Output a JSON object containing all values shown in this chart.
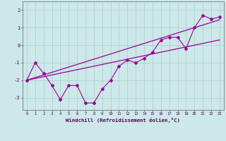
{
  "title": "",
  "xlabel": "Windchill (Refroidissement éolien,°C)",
  "bg_color": "#cce8e8",
  "line_color": "#990099",
  "xlim": [
    -0.5,
    23.5
  ],
  "ylim": [
    -3.7,
    2.5
  ],
  "x_data": [
    0,
    1,
    2,
    3,
    4,
    5,
    6,
    7,
    8,
    9,
    10,
    11,
    12,
    13,
    14,
    15,
    16,
    17,
    18,
    19,
    20,
    21,
    22,
    23
  ],
  "y_zigzag": [
    -2.0,
    -1.0,
    -1.6,
    -2.3,
    -3.1,
    -2.3,
    -2.3,
    -3.3,
    -3.3,
    -2.5,
    -2.0,
    -1.2,
    -0.85,
    -1.0,
    -0.75,
    -0.4,
    0.3,
    0.45,
    0.45,
    -0.2,
    1.0,
    1.7,
    1.5,
    1.6
  ],
  "y_trend_upper": [
    -2.0,
    -1.85,
    -1.7,
    -1.55,
    -1.4,
    -1.25,
    -1.1,
    -0.95,
    -0.8,
    -0.65,
    -0.5,
    -0.35,
    -0.2,
    -0.05,
    0.1,
    0.25,
    0.4,
    0.55,
    0.7,
    0.85,
    1.0,
    1.15,
    1.3,
    1.45
  ],
  "y_trend_lower": [
    -2.0,
    -1.9,
    -1.8,
    -1.7,
    -1.6,
    -1.5,
    -1.4,
    -1.3,
    -1.2,
    -1.1,
    -1.0,
    -0.9,
    -0.8,
    -0.7,
    -0.6,
    -0.5,
    -0.4,
    -0.3,
    -0.2,
    -0.1,
    0.0,
    0.1,
    0.2,
    0.3
  ],
  "yticks": [
    -3,
    -2,
    -1,
    0,
    1,
    2
  ],
  "xticks": [
    0,
    1,
    2,
    3,
    4,
    5,
    6,
    7,
    8,
    9,
    10,
    11,
    12,
    13,
    14,
    15,
    16,
    17,
    18,
    19,
    20,
    21,
    22,
    23
  ],
  "grid_color": "#aacccc",
  "tick_color": "#550055",
  "label_color": "#550055"
}
